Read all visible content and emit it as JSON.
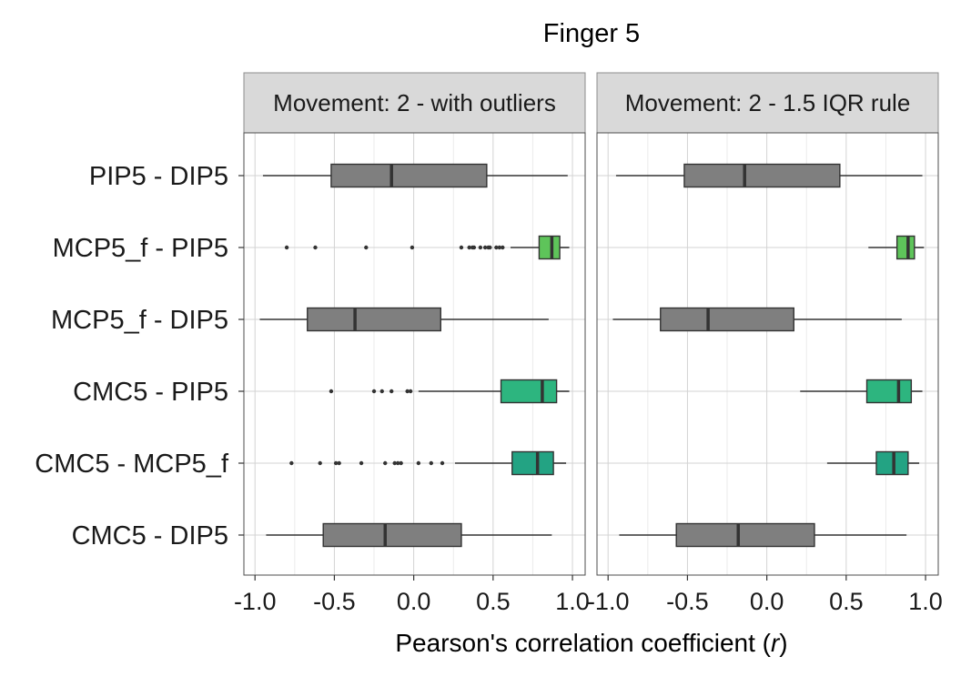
{
  "chart_data": {
    "type": "boxplot",
    "title": "Finger 5",
    "xlabel_prefix": "Pearson's correlation coefficient (",
    "xlabel_var": "r",
    "xlabel_suffix": ")",
    "xlim": [
      -1.07,
      1.08
    ],
    "xticks": [
      -1.0,
      -0.5,
      0.0,
      0.5,
      1.0
    ],
    "xtick_labels": [
      "-1.0",
      "-0.5",
      "0.0",
      "0.5",
      "1.0"
    ],
    "categories": [
      "PIP5 - DIP5",
      "MCP5_f - PIP5",
      "MCP5_f - DIP5",
      "CMC5 - PIP5",
      "CMC5 - MCP5_f",
      "CMC5 - DIP5"
    ],
    "colors": {
      "gray": "#7f7f7f",
      "green_light": "#5ec45a",
      "green_mid": "#2db57f",
      "green_teal": "#23a383",
      "strip_bg": "#d9d9d9",
      "grid": "#d3d3d3"
    },
    "panels": [
      {
        "strip": "Movement: 2 - with outliers",
        "boxes": [
          {
            "category": "PIP5 - DIP5",
            "min": -0.95,
            "q1": -0.52,
            "median": -0.14,
            "q3": 0.46,
            "max": 0.97,
            "color": "gray",
            "outliers": []
          },
          {
            "category": "MCP5_f - PIP5",
            "min": 0.61,
            "q1": 0.79,
            "median": 0.87,
            "q3": 0.92,
            "max": 0.98,
            "color": "green_light",
            "outliers": [
              -0.8,
              -0.62,
              -0.3,
              -0.01,
              0.3,
              0.35,
              0.37,
              0.38,
              0.42,
              0.45,
              0.47,
              0.48,
              0.52,
              0.54,
              0.56
            ]
          },
          {
            "category": "MCP5_f - DIP5",
            "min": -0.97,
            "q1": -0.67,
            "median": -0.37,
            "q3": 0.17,
            "max": 0.85,
            "color": "gray",
            "outliers": []
          },
          {
            "category": "CMC5 - PIP5",
            "min": 0.03,
            "q1": 0.55,
            "median": 0.81,
            "q3": 0.9,
            "max": 0.98,
            "color": "green_mid",
            "outliers": [
              -0.52,
              -0.25,
              -0.2,
              -0.14,
              -0.04,
              -0.02
            ]
          },
          {
            "category": "CMC5 - MCP5_f",
            "min": 0.26,
            "q1": 0.62,
            "median": 0.78,
            "q3": 0.88,
            "max": 0.96,
            "color": "green_teal",
            "outliers": [
              -0.77,
              -0.59,
              -0.49,
              -0.47,
              -0.33,
              -0.18,
              -0.12,
              -0.1,
              -0.08,
              0.03,
              0.11,
              0.18
            ]
          },
          {
            "category": "CMC5 - DIP5",
            "min": -0.93,
            "q1": -0.57,
            "median": -0.18,
            "q3": 0.3,
            "max": 0.87,
            "color": "gray",
            "outliers": []
          }
        ]
      },
      {
        "strip": "Movement: 2 - 1.5 IQR rule",
        "boxes": [
          {
            "category": "PIP5 - DIP5",
            "min": -0.95,
            "q1": -0.52,
            "median": -0.14,
            "q3": 0.46,
            "max": 0.98,
            "color": "gray",
            "outliers": []
          },
          {
            "category": "MCP5_f - PIP5",
            "min": 0.64,
            "q1": 0.82,
            "median": 0.89,
            "q3": 0.93,
            "max": 0.99,
            "color": "green_light",
            "outliers": []
          },
          {
            "category": "MCP5_f - DIP5",
            "min": -0.97,
            "q1": -0.67,
            "median": -0.37,
            "q3": 0.17,
            "max": 0.85,
            "color": "gray",
            "outliers": []
          },
          {
            "category": "CMC5 - PIP5",
            "min": 0.21,
            "q1": 0.63,
            "median": 0.83,
            "q3": 0.91,
            "max": 0.98,
            "color": "green_mid",
            "outliers": []
          },
          {
            "category": "CMC5 - MCP5_f",
            "min": 0.38,
            "q1": 0.69,
            "median": 0.8,
            "q3": 0.89,
            "max": 0.96,
            "color": "green_teal",
            "outliers": []
          },
          {
            "category": "CMC5 - DIP5",
            "min": -0.93,
            "q1": -0.57,
            "median": -0.18,
            "q3": 0.3,
            "max": 0.88,
            "color": "gray",
            "outliers": []
          }
        ]
      }
    ]
  }
}
